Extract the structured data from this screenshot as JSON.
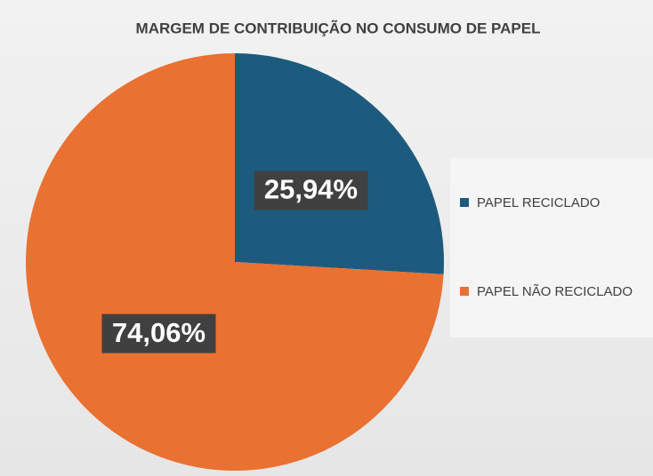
{
  "chart_data": {
    "type": "pie",
    "title": "MARGEM DE CONTRIBUIÇÃO NO CONSUMO DE PAPEL",
    "categories": [
      "PAPEL RECICLADO",
      "PAPEL NÃO RECICLADO"
    ],
    "values": [
      25.94,
      74.06
    ],
    "value_labels": [
      "25,94%",
      "74,06%"
    ],
    "colors": [
      "#1d5b7e",
      "#e97132"
    ],
    "legend": "right"
  }
}
